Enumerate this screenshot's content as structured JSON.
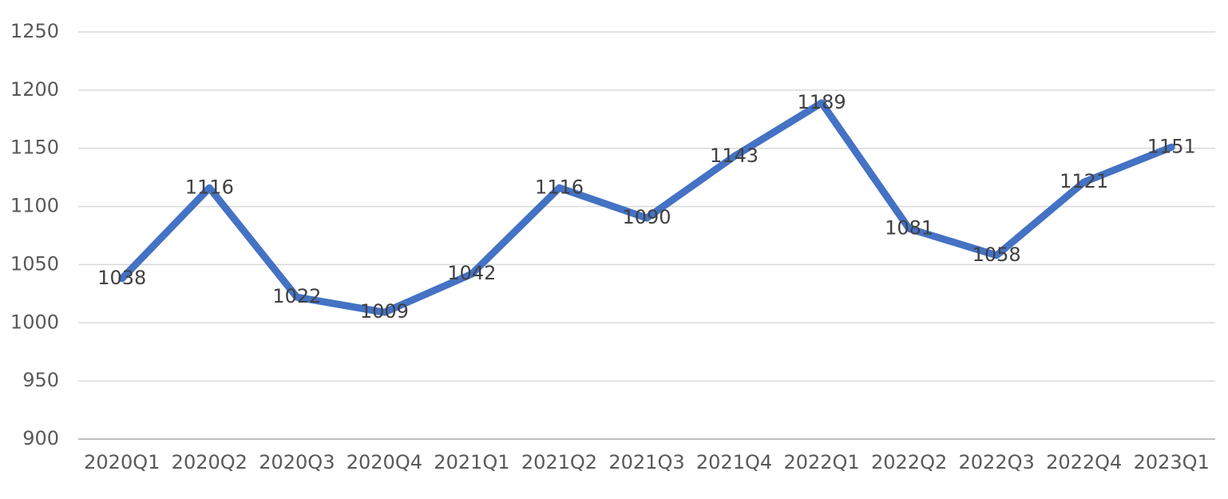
{
  "chart_data": {
    "type": "line",
    "categories": [
      "2020Q1",
      "2020Q2",
      "2020Q3",
      "2020Q4",
      "2021Q1",
      "2021Q2",
      "2021Q3",
      "2021Q4",
      "2022Q1",
      "2022Q2",
      "2022Q3",
      "2022Q4",
      "2023Q1"
    ],
    "values": [
      1038,
      1116,
      1022,
      1009,
      1042,
      1116,
      1090,
      1143,
      1189,
      1081,
      1058,
      1121,
      1151
    ],
    "color": "#4472c4",
    "ylim": [
      900,
      1250
    ],
    "yticks": [
      900,
      950,
      1000,
      1050,
      1100,
      1150,
      1200,
      1250
    ],
    "grid": true,
    "data_labels": true
  }
}
